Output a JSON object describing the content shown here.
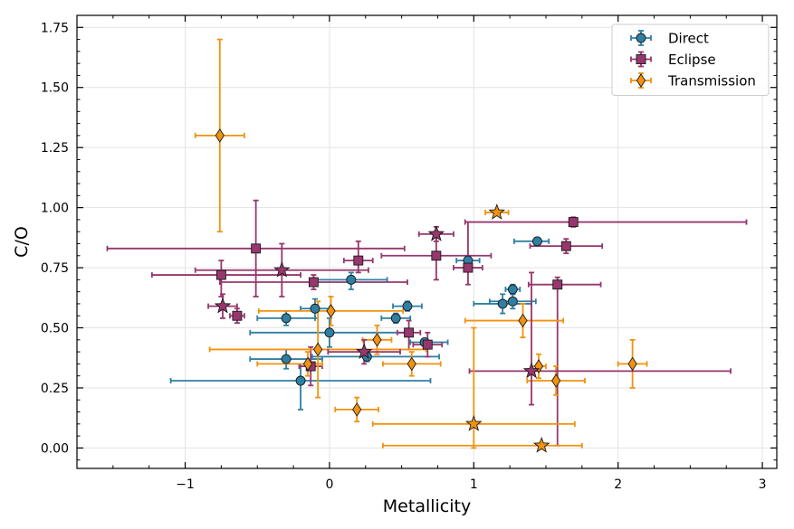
{
  "chart_data": {
    "type": "scatter",
    "title": "",
    "xlabel": "Metallicity",
    "ylabel": "C/O",
    "xlim": [
      -1.75,
      3.1
    ],
    "ylim": [
      -0.085,
      1.8
    ],
    "xticks": [
      -1,
      0,
      1,
      2,
      3
    ],
    "xtick_labels": [
      "−1",
      "0",
      "1",
      "2",
      "3"
    ],
    "yticks": [
      0.0,
      0.25,
      0.5,
      0.75,
      1.0,
      1.25,
      1.5,
      1.75
    ],
    "ytick_labels": [
      "0.00",
      "0.25",
      "0.50",
      "0.75",
      "1.00",
      "1.25",
      "1.50",
      "1.75"
    ],
    "grid": true,
    "legend_position": "top-right",
    "series": [
      {
        "name": "Direct",
        "marker": "circle",
        "color": "#2f7fa3",
        "points": [
          {
            "x": -0.2,
            "y": 0.28,
            "xlo": 0.9,
            "xhi": 0.9,
            "ylo": 0.12,
            "yhi": 0.07
          },
          {
            "x": -0.3,
            "y": 0.37,
            "xlo": 0.25,
            "xhi": 0.25,
            "ylo": 0.04,
            "yhi": 0.04
          },
          {
            "x": -0.3,
            "y": 0.54,
            "xlo": 0.2,
            "xhi": 0.2,
            "ylo": 0.03,
            "yhi": 0.03
          },
          {
            "x": -0.1,
            "y": 0.58,
            "xlo": 0.1,
            "xhi": 0.1,
            "ylo": 0.04,
            "yhi": 0.04
          },
          {
            "x": 0.0,
            "y": 0.48,
            "xlo": 0.55,
            "xhi": 0.55,
            "ylo": 0.06,
            "yhi": 0.06
          },
          {
            "x": 0.15,
            "y": 0.7,
            "xlo": 0.25,
            "xhi": 0.25,
            "ylo": 0.04,
            "yhi": 0.03
          },
          {
            "x": 0.26,
            "y": 0.38,
            "xlo": 0.38,
            "xhi": 0.5,
            "ylo": 0.02,
            "yhi": 0.02
          },
          {
            "x": 0.46,
            "y": 0.54,
            "xlo": 0.1,
            "xhi": 0.1,
            "ylo": 0.02,
            "yhi": 0.02
          },
          {
            "x": 0.54,
            "y": 0.59,
            "xlo": 0.1,
            "xhi": 0.1,
            "ylo": 0.02,
            "yhi": 0.02
          },
          {
            "x": 0.66,
            "y": 0.44,
            "xlo": 0.1,
            "xhi": 0.16,
            "ylo": 0.01,
            "yhi": 0.01
          },
          {
            "x": 0.96,
            "y": 0.78,
            "xlo": 0.08,
            "xhi": 0.08,
            "ylo": 0.02,
            "yhi": 0.02
          },
          {
            "x": 1.2,
            "y": 0.6,
            "xlo": 0.2,
            "xhi": 0.2,
            "ylo": 0.04,
            "yhi": 0.04
          },
          {
            "x": 1.27,
            "y": 0.66,
            "xlo": 0.05,
            "xhi": 0.05,
            "ylo": 0.02,
            "yhi": 0.02
          },
          {
            "x": 1.27,
            "y": 0.61,
            "xlo": 0.16,
            "xhi": 0.16,
            "ylo": 0.03,
            "yhi": 0.03
          },
          {
            "x": 1.44,
            "y": 0.86,
            "xlo": 0.16,
            "xhi": 0.08,
            "ylo": 0.01,
            "yhi": 0.01
          }
        ]
      },
      {
        "name": "Eclipse",
        "marker": "square",
        "color": "#96376d",
        "points": [
          {
            "x": -0.75,
            "y": 0.72,
            "xlo": 0.48,
            "xhi": 0.55,
            "ylo": 0.09,
            "yhi": 0.06
          },
          {
            "x": -0.64,
            "y": 0.55,
            "xlo": 0.05,
            "xhi": 0.05,
            "ylo": 0.03,
            "yhi": 0.03
          },
          {
            "x": -0.51,
            "y": 0.83,
            "xlo": 1.03,
            "xhi": 1.03,
            "ylo": 0.2,
            "yhi": 0.2
          },
          {
            "x": -0.11,
            "y": 0.69,
            "xlo": 0.65,
            "xhi": 0.65,
            "ylo": 0.03,
            "yhi": 0.03
          },
          {
            "x": -0.13,
            "y": 0.34,
            "xlo": 0.08,
            "xhi": 0.08,
            "ylo": 0.08,
            "yhi": 0.08
          },
          {
            "x": 0.2,
            "y": 0.78,
            "xlo": 0.1,
            "xhi": 0.1,
            "ylo": 0.05,
            "yhi": 0.08
          },
          {
            "x": 0.55,
            "y": 0.48,
            "xlo": 0.08,
            "xhi": 0.08,
            "ylo": 0.07,
            "yhi": 0.05
          },
          {
            "x": 0.68,
            "y": 0.43,
            "xlo": 0.1,
            "xhi": 0.1,
            "ylo": 0.05,
            "yhi": 0.05
          },
          {
            "x": 0.74,
            "y": 0.8,
            "xlo": 0.38,
            "xhi": 0.38,
            "ylo": 0.1,
            "yhi": 0.1
          },
          {
            "x": 0.96,
            "y": 0.75,
            "xlo": 0.1,
            "xhi": 0.1,
            "ylo": 0.07,
            "yhi": 0.19
          },
          {
            "x": 1.58,
            "y": 0.68,
            "xlo": 0.2,
            "xhi": 0.3,
            "ylo": 0.67,
            "yhi": 0.03
          },
          {
            "x": 1.64,
            "y": 0.84,
            "xlo": 0.25,
            "xhi": 0.25,
            "ylo": 0.03,
            "yhi": 0.03
          },
          {
            "x": 1.69,
            "y": 0.94,
            "xlo": 0.75,
            "xhi": 1.2,
            "ylo": 0.02,
            "yhi": 0.02
          }
        ]
      },
      {
        "name": "Transmission",
        "marker": "diamond",
        "color": "#f2920f",
        "points": [
          {
            "x": -0.76,
            "y": 1.3,
            "xlo": 0.17,
            "xhi": 0.17,
            "ylo": 0.4,
            "yhi": 0.4
          },
          {
            "x": -0.08,
            "y": 0.41,
            "xlo": 0.75,
            "xhi": 0.75,
            "ylo": 0.2,
            "yhi": 0.2
          },
          {
            "x": -0.15,
            "y": 0.35,
            "xlo": 0.35,
            "xhi": 0.1,
            "ylo": 0.05,
            "yhi": 0.05
          },
          {
            "x": 0.01,
            "y": 0.57,
            "xlo": 0.5,
            "xhi": 0.5,
            "ylo": 0.06,
            "yhi": 0.06
          },
          {
            "x": 0.19,
            "y": 0.16,
            "xlo": 0.15,
            "xhi": 0.15,
            "ylo": 0.05,
            "yhi": 0.05
          },
          {
            "x": 0.33,
            "y": 0.45,
            "xlo": 0.1,
            "xhi": 0.1,
            "ylo": 0.06,
            "yhi": 0.06
          },
          {
            "x": 0.57,
            "y": 0.35,
            "xlo": 0.2,
            "xhi": 0.2,
            "ylo": 0.05,
            "yhi": 0.05
          },
          {
            "x": 1.34,
            "y": 0.53,
            "xlo": 0.4,
            "xhi": 0.28,
            "ylo": 0.07,
            "yhi": 0.07
          },
          {
            "x": 1.45,
            "y": 0.34,
            "xlo": 0.05,
            "xhi": 0.05,
            "ylo": 0.05,
            "yhi": 0.05
          },
          {
            "x": 1.57,
            "y": 0.28,
            "xlo": 0.2,
            "xhi": 0.2,
            "ylo": 0.06,
            "yhi": 0.06
          },
          {
            "x": 2.1,
            "y": 0.35,
            "xlo": 0.1,
            "xhi": 0.1,
            "ylo": 0.1,
            "yhi": 0.1
          }
        ]
      },
      {
        "name": "Direct (starred)",
        "marker": "star",
        "color": "#2f7fa3",
        "legend": false,
        "points": []
      },
      {
        "name": "Eclipse (starred)",
        "marker": "star",
        "color": "#96376d",
        "legend": false,
        "points": [
          {
            "x": -0.74,
            "y": 0.59,
            "xlo": 0.1,
            "xhi": 0.1,
            "ylo": 0.05,
            "yhi": 0.05
          },
          {
            "x": -0.33,
            "y": 0.74,
            "xlo": 0.6,
            "xhi": 0.6,
            "ylo": 0.11,
            "yhi": 0.11
          },
          {
            "x": 0.24,
            "y": 0.4,
            "xlo": 0.25,
            "xhi": 0.25,
            "ylo": 0.05,
            "yhi": 0.05
          },
          {
            "x": 0.74,
            "y": 0.89,
            "xlo": 0.12,
            "xhi": 0.12,
            "ylo": 0.03,
            "yhi": 0.03
          },
          {
            "x": 1.4,
            "y": 0.32,
            "xlo": 0.43,
            "xhi": 1.38,
            "ylo": 0.14,
            "yhi": 0.41
          }
        ]
      },
      {
        "name": "Transmission (starred)",
        "marker": "star",
        "color": "#f2920f",
        "legend": false,
        "points": [
          {
            "x": 1.0,
            "y": 0.1,
            "xlo": 0.7,
            "xhi": 0.7,
            "ylo": 0.1,
            "yhi": 0.4
          },
          {
            "x": 1.16,
            "y": 0.98,
            "xlo": 0.08,
            "xhi": 0.08,
            "ylo": 0.01,
            "yhi": 0.01
          },
          {
            "x": 1.47,
            "y": 0.01,
            "xlo": 1.1,
            "xhi": 0.28,
            "ylo": 0.01,
            "yhi": 0.01
          }
        ]
      }
    ]
  }
}
